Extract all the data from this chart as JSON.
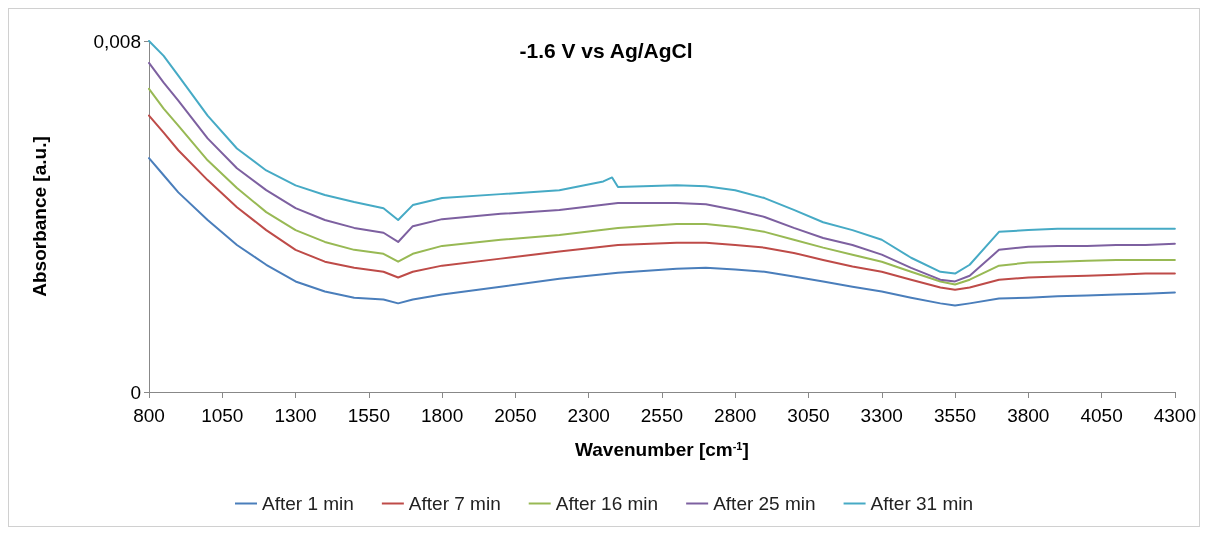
{
  "chart_data": {
    "type": "line",
    "title": "-1.6 V vs Ag/AgCl",
    "xlabel": "Wavenumber [cm$^{-1}$]",
    "ylabel": "Absorbance [a.u.]",
    "xlim": [
      800,
      4300
    ],
    "xticks": [
      800,
      1050,
      1300,
      1550,
      1800,
      2050,
      2300,
      2550,
      2800,
      3050,
      3300,
      3550,
      3800,
      4050,
      4300
    ],
    "ylim": [
      0,
      0.008
    ],
    "yticks": [
      0,
      {
        "value": 0.008,
        "label": "0,008"
      }
    ],
    "grid": false,
    "legend": "bottom",
    "marker": "none",
    "line_style": "solid",
    "series": [
      {
        "name": "After 1 min",
        "color": "#4a7ebb",
        "x": [
          800,
          850,
          900,
          1000,
          1100,
          1200,
          1300,
          1400,
          1500,
          1600,
          1650,
          1700,
          1800,
          2000,
          2200,
          2400,
          2600,
          2700,
          2800,
          2900,
          3000,
          3100,
          3200,
          3300,
          3400,
          3500,
          3550,
          3600,
          3700,
          3800,
          3900,
          4000,
          4100,
          4200,
          4300
        ],
        "values": [
          0.00533,
          0.00494,
          0.00455,
          0.00392,
          0.00335,
          0.0029,
          0.00252,
          0.00229,
          0.00215,
          0.00211,
          0.00202,
          0.00211,
          0.00222,
          0.0024,
          0.00258,
          0.00272,
          0.00281,
          0.00283,
          0.00279,
          0.00274,
          0.00263,
          0.00252,
          0.0024,
          0.00229,
          0.00215,
          0.00202,
          0.00197,
          0.00202,
          0.00213,
          0.00215,
          0.00218,
          0.0022,
          0.00222,
          0.00224,
          0.00227
        ]
      },
      {
        "name": "After 7 min",
        "color": "#be4b48",
        "x": [
          800,
          850,
          900,
          1000,
          1100,
          1200,
          1300,
          1400,
          1500,
          1600,
          1650,
          1700,
          1800,
          2000,
          2200,
          2400,
          2600,
          2700,
          2800,
          2900,
          3000,
          3100,
          3200,
          3300,
          3400,
          3500,
          3550,
          3600,
          3700,
          3800,
          3900,
          4000,
          4100,
          4200,
          4300
        ],
        "values": [
          0.0063,
          0.00591,
          0.00551,
          0.00483,
          0.00421,
          0.00369,
          0.00324,
          0.00297,
          0.00283,
          0.00274,
          0.00261,
          0.00274,
          0.00288,
          0.00304,
          0.0032,
          0.00335,
          0.0034,
          0.0034,
          0.00335,
          0.00329,
          0.00317,
          0.00301,
          0.00286,
          0.00274,
          0.00256,
          0.00238,
          0.00233,
          0.00238,
          0.00256,
          0.00261,
          0.00263,
          0.00265,
          0.00267,
          0.0027,
          0.0027
        ]
      },
      {
        "name": "After 16 min",
        "color": "#98b954",
        "x": [
          800,
          850,
          900,
          1000,
          1100,
          1200,
          1300,
          1400,
          1500,
          1600,
          1650,
          1700,
          1800,
          2000,
          2200,
          2400,
          2600,
          2700,
          2800,
          2900,
          3000,
          3100,
          3200,
          3300,
          3400,
          3500,
          3550,
          3600,
          3700,
          3800,
          3900,
          4000,
          4100,
          4200,
          4300
        ],
        "values": [
          0.00691,
          0.00646,
          0.00607,
          0.00528,
          0.00465,
          0.0041,
          0.00369,
          0.00342,
          0.00324,
          0.00315,
          0.00297,
          0.00315,
          0.00333,
          0.00347,
          0.00358,
          0.00374,
          0.00383,
          0.00383,
          0.00376,
          0.00365,
          0.00347,
          0.00329,
          0.00313,
          0.00297,
          0.00274,
          0.00252,
          0.00245,
          0.00256,
          0.00288,
          0.00295,
          0.00297,
          0.00299,
          0.00301,
          0.00301,
          0.00301
        ]
      },
      {
        "name": "After 25 min",
        "color": "#7d60a0",
        "x": [
          800,
          850,
          900,
          1000,
          1100,
          1200,
          1300,
          1400,
          1500,
          1600,
          1650,
          1700,
          1800,
          2000,
          2200,
          2400,
          2600,
          2700,
          2800,
          2900,
          3000,
          3100,
          3200,
          3300,
          3400,
          3500,
          3550,
          3600,
          3700,
          3800,
          3900,
          4000,
          4100,
          4200,
          4300
        ],
        "values": [
          0.0075,
          0.00705,
          0.00664,
          0.00578,
          0.0051,
          0.0046,
          0.00419,
          0.00392,
          0.00374,
          0.00363,
          0.00342,
          0.00378,
          0.00394,
          0.00406,
          0.00415,
          0.00431,
          0.00431,
          0.00428,
          0.00415,
          0.00399,
          0.00374,
          0.00351,
          0.00335,
          0.00313,
          0.00283,
          0.00256,
          0.00252,
          0.00265,
          0.00324,
          0.00331,
          0.00333,
          0.00333,
          0.00335,
          0.00335,
          0.00338
        ]
      },
      {
        "name": "After 31 min",
        "color": "#46aac5",
        "x": [
          800,
          850,
          900,
          1000,
          1100,
          1200,
          1300,
          1400,
          1500,
          1600,
          1650,
          1700,
          1800,
          2000,
          2200,
          2350,
          2380,
          2400,
          2600,
          2700,
          2800,
          2900,
          3000,
          3100,
          3200,
          3300,
          3400,
          3500,
          3550,
          3600,
          3700,
          3800,
          3900,
          4000,
          4100,
          4200,
          4300
        ],
        "values": [
          0.008,
          0.00766,
          0.00721,
          0.0063,
          0.00555,
          0.00505,
          0.00471,
          0.00449,
          0.00433,
          0.00419,
          0.00392,
          0.00426,
          0.00442,
          0.00451,
          0.0046,
          0.0048,
          0.00489,
          0.00467,
          0.00471,
          0.00469,
          0.0046,
          0.00442,
          0.00415,
          0.00387,
          0.00369,
          0.00347,
          0.00306,
          0.00274,
          0.0027,
          0.0029,
          0.00365,
          0.00369,
          0.00372,
          0.00372,
          0.00372,
          0.00372,
          0.00372
        ]
      }
    ]
  }
}
